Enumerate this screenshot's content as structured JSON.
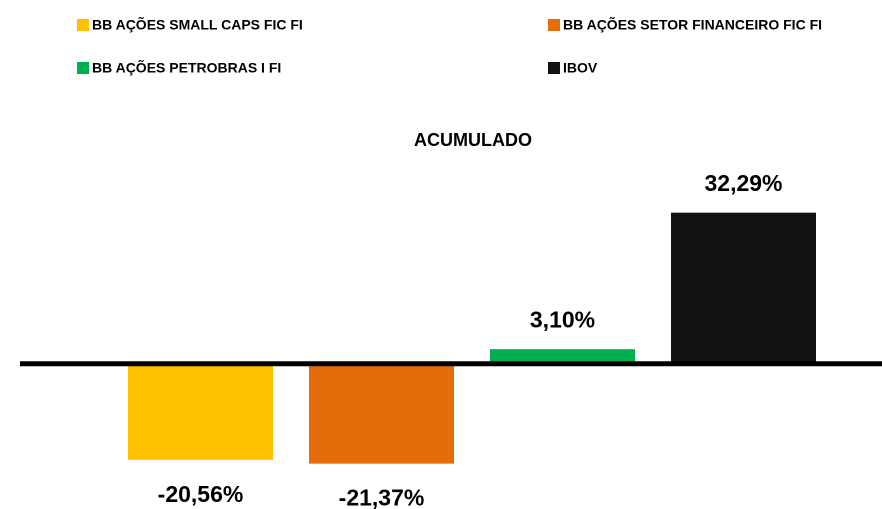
{
  "chart_data": {
    "type": "bar",
    "title": "ACUMULADO",
    "series": [
      {
        "name": "BB AÇÕES SMALL CAPS FIC FI",
        "color": "#FFC000",
        "values": [
          -20.56
        ],
        "value_labels": [
          "-20,56%"
        ]
      },
      {
        "name": "BB AÇÕES SETOR FINANCEIRO FIC FI",
        "color": "#E46C0A",
        "values": [
          -21.37
        ],
        "value_labels": [
          "-21,37%"
        ]
      },
      {
        "name": "BB AÇÕES PETROBRAS I FI",
        "color": "#00B050",
        "values": [
          3.1
        ],
        "value_labels": [
          "3,10%"
        ]
      },
      {
        "name": "IBOV",
        "color": "#111111",
        "values": [
          32.29
        ],
        "value_labels": [
          "32,29%"
        ]
      }
    ],
    "ylim": [
      -30,
      35
    ]
  }
}
